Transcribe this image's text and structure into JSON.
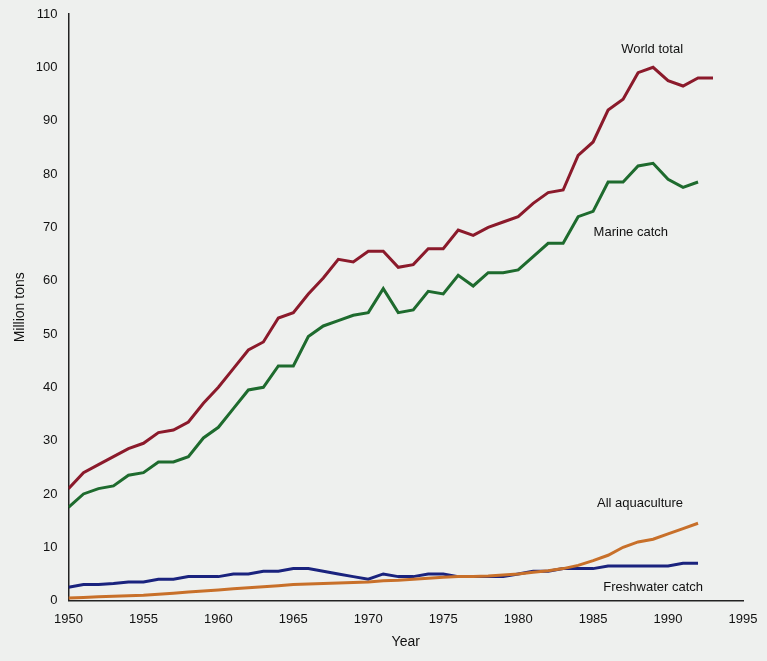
{
  "chart_data": {
    "type": "line",
    "x_label": "Year",
    "y_label": "Million tons",
    "x": [
      1950,
      1951,
      1952,
      1953,
      1954,
      1955,
      1956,
      1957,
      1958,
      1959,
      1960,
      1961,
      1962,
      1963,
      1964,
      1965,
      1966,
      1967,
      1968,
      1969,
      1970,
      1971,
      1972,
      1973,
      1974,
      1975,
      1976,
      1977,
      1978,
      1979,
      1980,
      1981,
      1982,
      1983,
      1984,
      1985,
      1986,
      1987,
      1988,
      1989,
      1990,
      1991,
      1992,
      1993
    ],
    "series": [
      {
        "name": "World total",
        "color": "#8b1a2b",
        "values": [
          21,
          24,
          25.5,
          27,
          28.5,
          29.5,
          31.5,
          32,
          33.5,
          37,
          40,
          43.5,
          47,
          48.5,
          53,
          54,
          57.5,
          60.5,
          64,
          63.5,
          65.5,
          65.5,
          62.5,
          63,
          66,
          66,
          69.5,
          68.5,
          70,
          71,
          72,
          74.5,
          76.5,
          77,
          83.5,
          86,
          92,
          94,
          99,
          100,
          97.5,
          96.5,
          98,
          98
        ]
      },
      {
        "name": "Marine catch",
        "color": "#1e6b2e",
        "values": [
          17.5,
          20,
          21,
          21.5,
          23.5,
          24,
          26,
          26,
          27,
          30.5,
          32.5,
          36,
          39.5,
          40,
          44,
          44,
          49.5,
          51.5,
          52.5,
          53.5,
          54,
          58.5,
          54,
          54.5,
          58,
          57.5,
          61,
          59,
          61.5,
          61.5,
          62,
          64.5,
          67,
          67,
          72,
          73,
          78.5,
          78.5,
          81.5,
          82,
          79,
          77.5,
          78.5,
          null
        ]
      },
      {
        "name": "All aquaculture",
        "color": "#c8702a",
        "values": [
          0.5,
          0.6,
          0.7,
          0.8,
          0.9,
          1,
          1.2,
          1.4,
          1.6,
          1.8,
          2,
          2.2,
          2.4,
          2.6,
          2.8,
          3,
          3.1,
          3.2,
          3.3,
          3.4,
          3.5,
          3.7,
          3.8,
          4,
          4.2,
          4.4,
          4.5,
          4.5,
          4.6,
          4.8,
          5,
          5.3,
          5.6,
          6,
          6.6,
          7.5,
          8.5,
          10,
          11,
          11.5,
          12.5,
          13.5,
          14.5,
          null
        ]
      },
      {
        "name": "Freshwater catch",
        "color": "#1a237e",
        "values": [
          2.5,
          3,
          3,
          3.2,
          3.5,
          3.5,
          4,
          4,
          4.5,
          4.5,
          4.5,
          5,
          5,
          5.5,
          5.5,
          6,
          6,
          5.5,
          5,
          4.5,
          4,
          5,
          4.5,
          4.5,
          5,
          5,
          4.5,
          4.5,
          4.5,
          4.5,
          5,
          5.5,
          5.5,
          6,
          6,
          6,
          6.5,
          6.5,
          6.5,
          6.5,
          6.5,
          7,
          7,
          null
        ]
      }
    ],
    "xlim": [
      1950,
      1995
    ],
    "xticks": [
      1950,
      1955,
      1960,
      1965,
      1970,
      1975,
      1980,
      1985,
      1990,
      1995
    ],
    "ylim": [
      0,
      110
    ],
    "yticks": [
      0,
      10,
      20,
      30,
      40,
      50,
      60,
      70,
      80,
      90,
      100,
      110
    ],
    "grid": false
  }
}
